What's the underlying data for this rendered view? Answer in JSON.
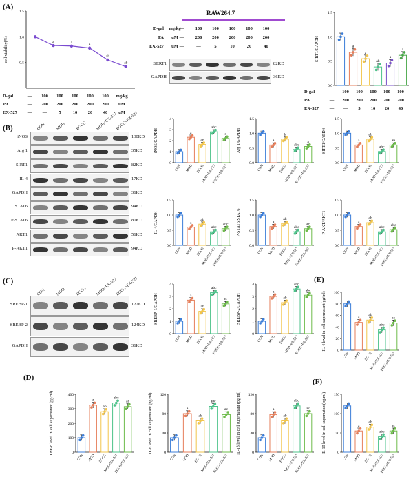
{
  "panel_labels": {
    "A": "(A)",
    "B": "(B)",
    "C": "(C)",
    "D": "(D)",
    "E": "(E)",
    "F": "(F)"
  },
  "cell_line": "RAW264.7",
  "treatment_table": {
    "rows": [
      {
        "name": "D-gal",
        "unit": "mg/kg",
        "values": [
          "—",
          "100",
          "100",
          "100",
          "100",
          "100"
        ]
      },
      {
        "name": "PA",
        "unit": "uM",
        "values": [
          "—",
          "200",
          "200",
          "200",
          "200",
          "200"
        ]
      },
      {
        "name": "EX-527",
        "unit": "uM",
        "values": [
          "—",
          "—",
          "5",
          "10",
          "20",
          "40"
        ]
      }
    ]
  },
  "groups_B": [
    "CON",
    "MOD",
    "EGCG",
    "MOD+EX-527",
    "EGCG+EX-527"
  ],
  "blot_A": {
    "rows": [
      {
        "name": "SERT1",
        "kd": "82KD"
      },
      {
        "name": "GAPDH",
        "kd": "36KD"
      }
    ]
  },
  "blot_B": {
    "rows": [
      {
        "name": "iNOS",
        "kd": "130KD"
      },
      {
        "name": "Arg 1",
        "kd": "35KD"
      },
      {
        "name": "SIRT1",
        "kd": "82KD"
      },
      {
        "name": "IL-4",
        "kd": "17KD"
      },
      {
        "name": "GAPDH",
        "kd": "36KD"
      },
      {
        "name": "STAT6",
        "kd": "94KD"
      },
      {
        "name": "P-STAT6",
        "kd": "80KD"
      },
      {
        "name": "AKT1",
        "kd": "56KD"
      },
      {
        "name": "P-AKT1",
        "kd": "94KD"
      }
    ]
  },
  "blot_C": {
    "rows": [
      {
        "name": "SREBP-1",
        "kd": "122KD"
      },
      {
        "name": "SREBP-2",
        "kd": "124KD"
      },
      {
        "name": "GAPDH",
        "kd": "36KD"
      }
    ]
  },
  "chart_data": [
    {
      "id": "A1",
      "type": "line",
      "ylabel": "cell viability(%)",
      "ylim": [
        0,
        1.5
      ],
      "yticks": [
        0.5,
        1.0,
        1.5
      ],
      "values": [
        1.0,
        0.83,
        0.82,
        0.78,
        0.55,
        0.42
      ],
      "labels": [
        "",
        "a",
        "a",
        "a",
        "ab",
        "ab"
      ]
    },
    {
      "id": "A2",
      "type": "bar",
      "ylabel": "SIRT1/GAPDH",
      "ylim": [
        0,
        1.5
      ],
      "yticks": [
        0.0,
        0.5,
        1.0,
        1.5
      ],
      "values": [
        1.0,
        0.68,
        0.55,
        0.38,
        0.46,
        0.62
      ],
      "labels": [
        "",
        "a",
        "a",
        "ab",
        "a",
        "a"
      ],
      "colors": [
        "#3b7dd8",
        "#e67e5a",
        "#f2c54b",
        "#4cc38a",
        "#7a52c9",
        "#4aa84a"
      ]
    },
    {
      "id": "B1",
      "type": "bar",
      "ylabel": "iNOS/GAPDH",
      "ylim": [
        0,
        4
      ],
      "yticks": [
        0,
        1,
        2,
        3,
        4
      ],
      "values": [
        1.0,
        2.3,
        1.65,
        2.8,
        2.2
      ],
      "labels": [
        "",
        "a",
        "ab",
        "abc",
        "a"
      ]
    },
    {
      "id": "B2",
      "type": "bar",
      "ylabel": "Arg 1/GAPDH",
      "ylim": [
        0,
        1.5
      ],
      "yticks": [
        0.0,
        0.5,
        1.0,
        1.5
      ],
      "values": [
        1.0,
        0.6,
        0.8,
        0.45,
        0.55
      ],
      "labels": [
        "",
        "a",
        "b",
        "abc",
        "a"
      ]
    },
    {
      "id": "B3",
      "type": "bar",
      "ylabel": "SIRT1/GAPDH",
      "ylim": [
        0,
        1.5
      ],
      "yticks": [
        0.0,
        0.5,
        1.0,
        1.5
      ],
      "values": [
        1.0,
        0.6,
        0.8,
        0.38,
        0.6
      ],
      "labels": [
        "",
        "a",
        "ab",
        "abc",
        "ab"
      ]
    },
    {
      "id": "B4",
      "type": "bar",
      "ylabel": "IL-4/GAPDH",
      "ylim": [
        0,
        1.5
      ],
      "yticks": [
        0.0,
        0.5,
        1.0,
        1.5
      ],
      "values": [
        1.0,
        0.6,
        0.7,
        0.45,
        0.55
      ],
      "labels": [
        "",
        "a",
        "ab",
        "abc",
        "abc"
      ]
    },
    {
      "id": "B5",
      "type": "bar",
      "ylabel": "P-STAT6/STAT6",
      "ylim": [
        0,
        1.5
      ],
      "yticks": [
        0.0,
        0.5,
        1.0,
        1.5
      ],
      "values": [
        1.0,
        0.62,
        0.72,
        0.45,
        0.55
      ],
      "labels": [
        "",
        "a",
        "ab",
        "abc",
        "ac"
      ]
    },
    {
      "id": "B6",
      "type": "bar",
      "ylabel": "P-AKT/AKT1",
      "ylim": [
        0,
        1.5
      ],
      "yticks": [
        0.0,
        0.5,
        1.0,
        1.5
      ],
      "values": [
        1.0,
        0.62,
        0.75,
        0.45,
        0.52
      ],
      "labels": [
        "",
        "a",
        "ab",
        "abc",
        "abc"
      ]
    },
    {
      "id": "C1",
      "type": "bar",
      "ylabel": "SREBP-1/GAPDH",
      "ylim": [
        0,
        4
      ],
      "yticks": [
        0,
        1,
        2,
        3,
        4
      ],
      "values": [
        1.0,
        2.7,
        1.8,
        3.3,
        2.4
      ],
      "labels": [
        "",
        "a",
        "ab",
        "abc",
        "ac"
      ]
    },
    {
      "id": "C2",
      "type": "bar",
      "ylabel": "SREBP-2/GAPDH",
      "ylim": [
        0,
        4
      ],
      "yticks": [
        0,
        1,
        2,
        3,
        4
      ],
      "values": [
        1.0,
        3.0,
        2.5,
        3.6,
        3.1
      ],
      "labels": [
        "",
        "a",
        "ab",
        "abc",
        "abc"
      ]
    },
    {
      "id": "E",
      "type": "bar",
      "ylabel": "IL-4 level in cell supernatant(pg/ml)",
      "ylim": [
        0,
        100
      ],
      "yticks": [
        0,
        20,
        40,
        60,
        80,
        100
      ],
      "values": [
        80,
        48,
        52,
        35,
        47
      ],
      "labels": [
        "",
        "a",
        "ab",
        "abc",
        "ac"
      ]
    },
    {
      "id": "D1",
      "type": "bar",
      "ylabel": "TNF-α level in cell supernatant (pg/ml)",
      "ylim": [
        0,
        400
      ],
      "yticks": [
        0,
        100,
        200,
        300,
        400
      ],
      "values": [
        100,
        325,
        280,
        340,
        315
      ],
      "labels": [
        "",
        "a",
        "ab",
        "abc",
        "ac"
      ]
    },
    {
      "id": "D2",
      "type": "bar",
      "ylabel": "IL-6 level in cell supernatant (pg/ml)",
      "ylim": [
        0,
        120
      ],
      "yticks": [
        0,
        40,
        80,
        120
      ],
      "values": [
        30,
        80,
        65,
        95,
        78
      ],
      "labels": [
        "",
        "a",
        "ab",
        "abc",
        "ac"
      ]
    },
    {
      "id": "D3",
      "type": "bar",
      "ylabel": "IL-1β level in cell supernatant (pg/ml)",
      "ylim": [
        0,
        120
      ],
      "yticks": [
        0,
        40,
        80,
        120
      ],
      "values": [
        30,
        78,
        65,
        96,
        80
      ],
      "labels": [
        "",
        "a",
        "ab",
        "abc",
        "ac"
      ]
    },
    {
      "id": "F",
      "type": "bar",
      "ylabel": "IL-10 level in cell supernatant(pg/ml)",
      "ylim": [
        0,
        150
      ],
      "yticks": [
        0,
        50,
        100,
        150
      ],
      "values": [
        120,
        55,
        65,
        40,
        55
      ],
      "labels": [
        "",
        "a",
        "ab",
        "abc",
        "ac"
      ]
    }
  ],
  "colors_B": [
    "#3b7dd8",
    "#e67e5a",
    "#f2c54b",
    "#4cc38a",
    "#6dbb4a"
  ]
}
